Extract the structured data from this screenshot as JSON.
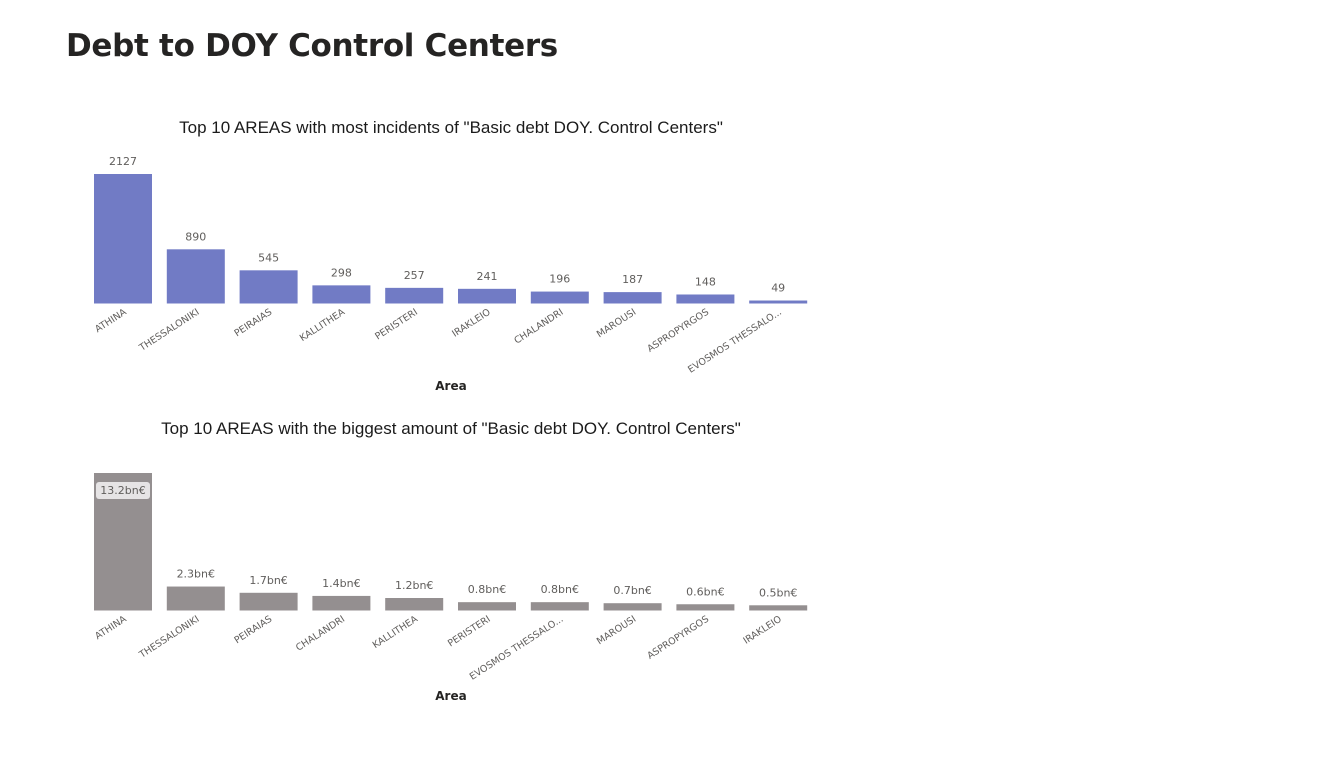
{
  "page": {
    "title": "Debt to DOY Control Centers"
  },
  "chart_data": [
    {
      "type": "bar",
      "title": "Top 10 AREAS with most incidents of \"Basic debt DOY. Control Centers\"",
      "xlabel": "Area",
      "ylabel": "",
      "categories": [
        "ATHINA",
        "THESSALONIKI",
        "PEIRAIAS",
        "KALLITHEA",
        "PERISTERI",
        "IRAKLEIO",
        "CHALANDRI",
        "MAROUSI",
        "ASPROPYRGOS",
        "EVOSMOS THESSALO..."
      ],
      "values": [
        2127,
        890,
        545,
        298,
        257,
        241,
        196,
        187,
        148,
        49
      ],
      "data_labels": [
        "2127",
        "890",
        "545",
        "298",
        "257",
        "241",
        "196",
        "187",
        "148",
        "49"
      ],
      "color": "#717bc5",
      "grid": false,
      "legend": "none"
    },
    {
      "type": "bar",
      "title": "Top 10 AREAS with the biggest amount of \"Basic debt DOY. Control Centers\"",
      "xlabel": "Area",
      "ylabel": "",
      "categories": [
        "ATHINA",
        "THESSALONIKI",
        "PEIRAIAS",
        "CHALANDRI",
        "KALLITHEA",
        "PERISTERI",
        "EVOSMOS THESSALO...",
        "MAROUSI",
        "ASPROPYRGOS",
        "IRAKLEIO"
      ],
      "values": [
        13.2,
        2.3,
        1.7,
        1.4,
        1.2,
        0.8,
        0.8,
        0.7,
        0.6,
        0.5
      ],
      "unit": "bn€",
      "data_labels": [
        "13.2bn€",
        "2.3bn€",
        "1.7bn€",
        "1.4bn€",
        "1.2bn€",
        "0.8bn€",
        "0.8bn€",
        "0.7bn€",
        "0.6bn€",
        "0.5bn€"
      ],
      "color": "#948f90",
      "grid": false,
      "legend": "none"
    }
  ]
}
